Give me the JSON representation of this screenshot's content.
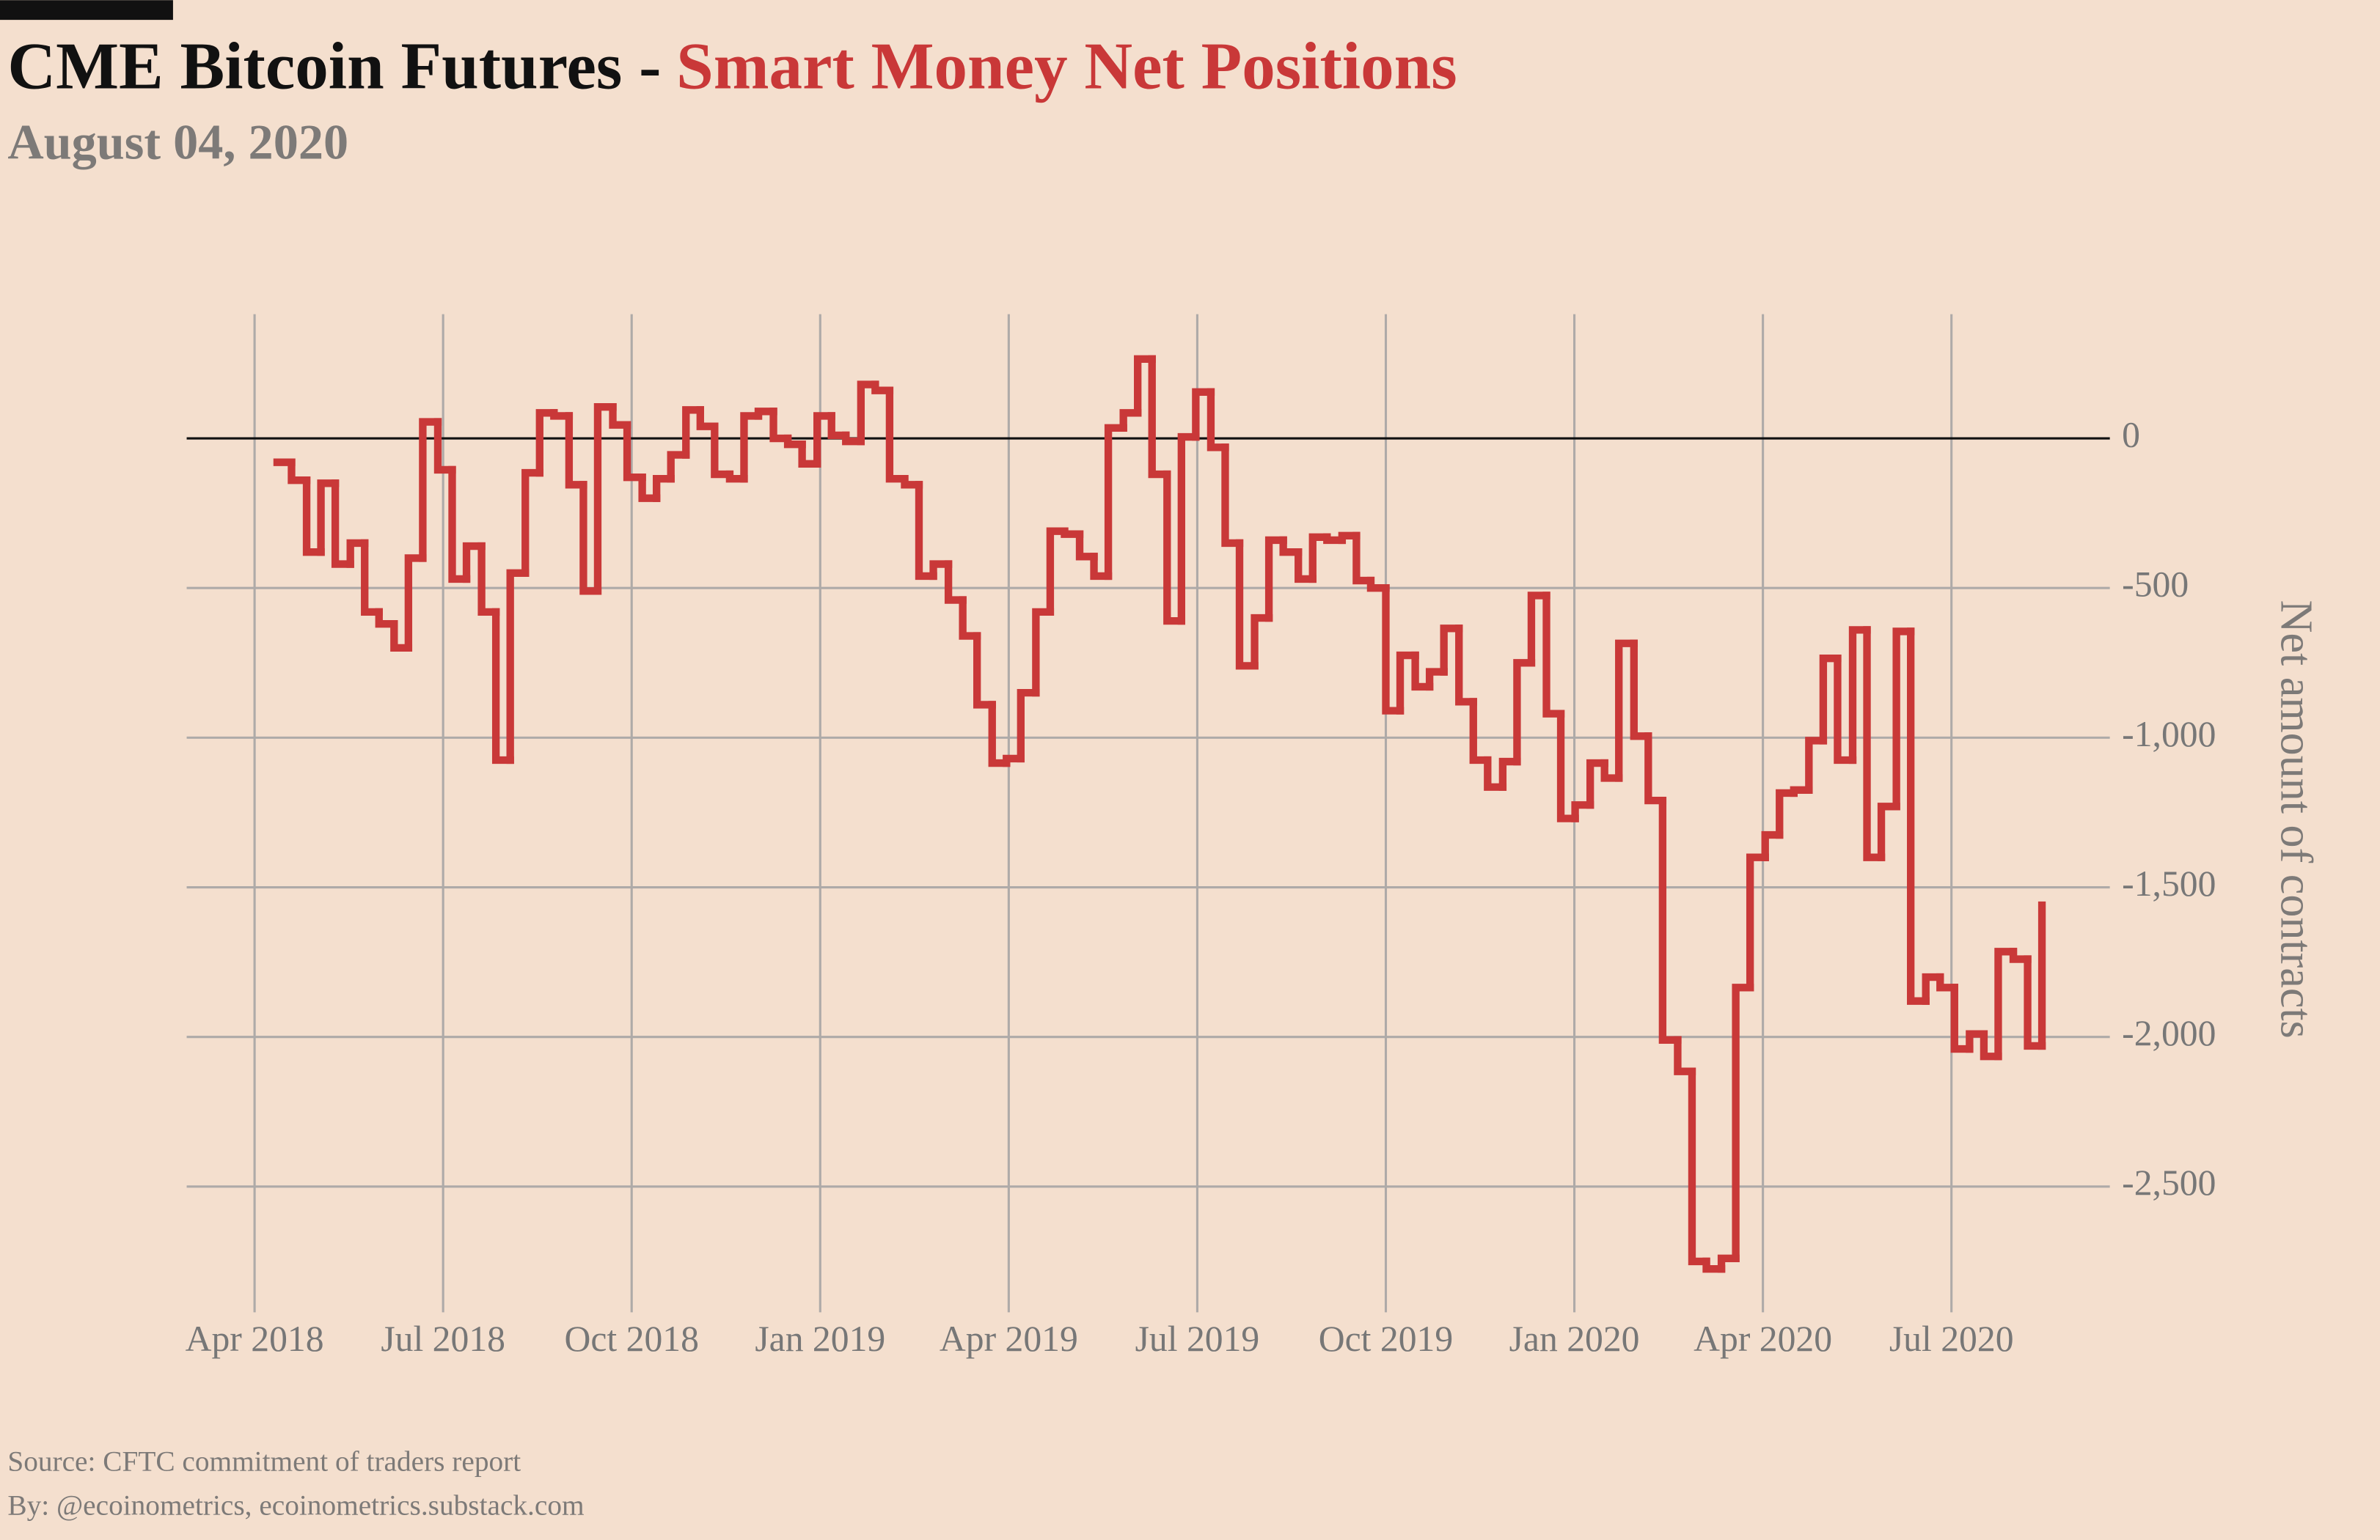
{
  "chart_data": {
    "type": "step",
    "title": "CME Bitcoin Futures -",
    "title_highlight": "Smart Money Net Positions",
    "subtitle": "August 04, 2020",
    "y_label": "Net amount of contracts",
    "sources": [
      "Source: CFTC commitment of traders report",
      "By: @ecoinometrics, ecoinometrics.substack.com"
    ],
    "grid": true,
    "xlim": [
      2018.16,
      2020.71
    ],
    "xticks": [
      {
        "value": 2018.25,
        "label": "Apr 2018"
      },
      {
        "value": 2018.5,
        "label": "Jul 2018"
      },
      {
        "value": 2018.75,
        "label": "Oct 2018"
      },
      {
        "value": 2019,
        "label": "Jan 2019"
      },
      {
        "value": 2019.25,
        "label": "Apr 2019"
      },
      {
        "value": 2019.5,
        "label": "Jul 2019"
      },
      {
        "value": 2019.75,
        "label": "Oct 2019"
      },
      {
        "value": 2020,
        "label": "Jan 2020"
      },
      {
        "value": 2020.25,
        "label": "Apr 2020"
      },
      {
        "value": 2020.5,
        "label": "Jul 2020"
      }
    ],
    "ylim": [
      -2920,
      415
    ],
    "yticks": [
      0,
      -500,
      {
        "value": -1000,
        "label": "-1,000"
      },
      {
        "value": -1500,
        "label": "-1,500"
      },
      {
        "value": -2000,
        "label": "-2,000"
      },
      {
        "value": -2500,
        "label": "-2,500"
      }
    ],
    "x": [
      2018.28,
      2018.299,
      2018.319,
      2018.338,
      2018.357,
      2018.377,
      2018.396,
      2018.415,
      2018.435,
      2018.454,
      2018.473,
      2018.493,
      2018.512,
      2018.531,
      2018.551,
      2018.57,
      2018.589,
      2018.609,
      2018.628,
      2018.647,
      2018.667,
      2018.686,
      2018.705,
      2018.725,
      2018.744,
      2018.764,
      2018.783,
      2018.802,
      2018.822,
      2018.841,
      2018.86,
      2018.88,
      2018.899,
      2018.918,
      2018.938,
      2018.957,
      2018.976,
      2018.996,
      2019.015,
      2019.034,
      2019.054,
      2019.073,
      2019.092,
      2019.112,
      2019.131,
      2019.15,
      2019.17,
      2019.189,
      2019.208,
      2019.228,
      2019.247,
      2019.266,
      2019.286,
      2019.305,
      2019.324,
      2019.344,
      2019.363,
      2019.382,
      2019.402,
      2019.421,
      2019.44,
      2019.46,
      2019.479,
      2019.498,
      2019.518,
      2019.537,
      2019.556,
      2019.576,
      2019.595,
      2019.614,
      2019.634,
      2019.653,
      2019.672,
      2019.692,
      2019.711,
      2019.73,
      2019.75,
      2019.769,
      2019.789,
      2019.808,
      2019.827,
      2019.847,
      2019.866,
      2019.885,
      2019.905,
      2019.924,
      2019.943,
      2019.963,
      2019.982,
      2020.001,
      2020.021,
      2020.04,
      2020.059,
      2020.079,
      2020.098,
      2020.117,
      2020.137,
      2020.156,
      2020.175,
      2020.195,
      2020.214,
      2020.233,
      2020.253,
      2020.272,
      2020.291,
      2020.311,
      2020.33,
      2020.349,
      2020.369,
      2020.388,
      2020.407,
      2020.427,
      2020.446,
      2020.466,
      2020.485,
      2020.504,
      2020.524,
      2020.543,
      2020.562,
      2020.582,
      2020.601,
      2020.62
    ],
    "series": [
      {
        "color": "#c93838",
        "values": [
          -80,
          -140,
          -380,
          -150,
          -420,
          -350,
          -580,
          -620,
          -700,
          -400,
          55,
          -105,
          -470,
          -360,
          -580,
          -1075,
          -450,
          -115,
          85,
          75,
          -155,
          -510,
          105,
          45,
          -130,
          -200,
          -135,
          -55,
          95,
          40,
          -120,
          -135,
          75,
          90,
          0,
          -20,
          -85,
          75,
          10,
          -10,
          180,
          160,
          -135,
          -155,
          -460,
          -420,
          -540,
          -660,
          -890,
          -1085,
          -1070,
          -850,
          -580,
          -310,
          -320,
          -395,
          -460,
          35,
          85,
          265,
          -120,
          -610,
          5,
          155,
          -30,
          -350,
          -760,
          -600,
          -340,
          -380,
          -470,
          -330,
          -340,
          -325,
          -475,
          -500,
          -910,
          -725,
          -830,
          -780,
          -635,
          -880,
          -1075,
          -1165,
          -1080,
          -750,
          -525,
          -920,
          -1270,
          -1225,
          -1085,
          -1135,
          -685,
          -995,
          -1210,
          -2010,
          -2115,
          -2750,
          -2775,
          -2740,
          -1835,
          -1400,
          -1325,
          -1185,
          -1175,
          -1010,
          -735,
          -1075,
          -640,
          -1400,
          -1230,
          -645,
          -1880,
          -1800,
          -1835,
          -2040,
          -1990,
          -2065,
          -1715,
          -1740,
          -2030,
          -1560
        ]
      }
    ]
  }
}
